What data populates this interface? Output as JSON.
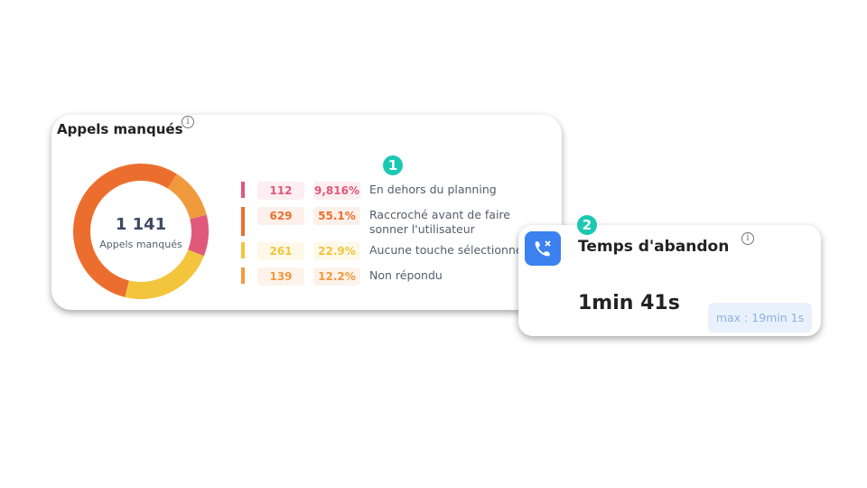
{
  "card1": {
    "title": "Appels manqués",
    "badge": "1",
    "total": "1 141",
    "total_label": "Appels manqués",
    "rows": [
      {
        "count": 112,
        "percent": "9,816%",
        "label": "En dehors du planning",
        "color": "#e0587a",
        "bg": "#fdeef1"
      },
      {
        "count": 629,
        "percent": "55.1%",
        "label": "Raccroché avant de faire sonner l'utilisateur",
        "color": "#ec6e2e",
        "bg": "#fdf0ea"
      },
      {
        "count": 261,
        "percent": "22.9%",
        "label": "Aucune touche sélectionnée",
        "color": "#f2c53d",
        "bg": "#fdf8e8"
      },
      {
        "count": 139,
        "percent": "12.2%",
        "label": "Non répondu",
        "color": "#f09a3e",
        "bg": "#fdf3ea"
      }
    ]
  },
  "card2": {
    "title": "Temps d'abandon",
    "badge": "2",
    "value": "1min 41s",
    "max": "max : 19min 1s"
  }
}
